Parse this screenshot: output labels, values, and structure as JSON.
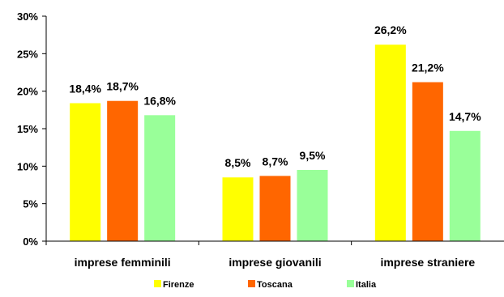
{
  "chart_data": {
    "type": "bar",
    "title": "",
    "xlabel": "",
    "ylabel": "",
    "categories": [
      "imprese femminili",
      "imprese giovanili",
      "imprese straniere"
    ],
    "series": [
      {
        "name": "Firenze",
        "color": "#FFFF00",
        "values": [
          18.4,
          8.5,
          26.2
        ],
        "labels": [
          "18,4%",
          "8,5%",
          "26,2%"
        ]
      },
      {
        "name": "Toscana",
        "color": "#FF6600",
        "values": [
          18.7,
          8.7,
          21.2
        ],
        "labels": [
          "18,7%",
          "8,7%",
          "21,2%"
        ]
      },
      {
        "name": "Italia",
        "color": "#99FF99",
        "values": [
          16.8,
          9.5,
          14.7
        ],
        "labels": [
          "16,8%",
          "9,5%",
          "14,7%"
        ]
      }
    ],
    "ylim": [
      0,
      30
    ],
    "yticks": [
      0,
      5,
      10,
      15,
      20,
      25,
      30
    ],
    "ytick_labels": [
      "0%",
      "5%",
      "10%",
      "15%",
      "20%",
      "25%",
      "30%"
    ],
    "grid": false,
    "legend_position": "bottom"
  }
}
